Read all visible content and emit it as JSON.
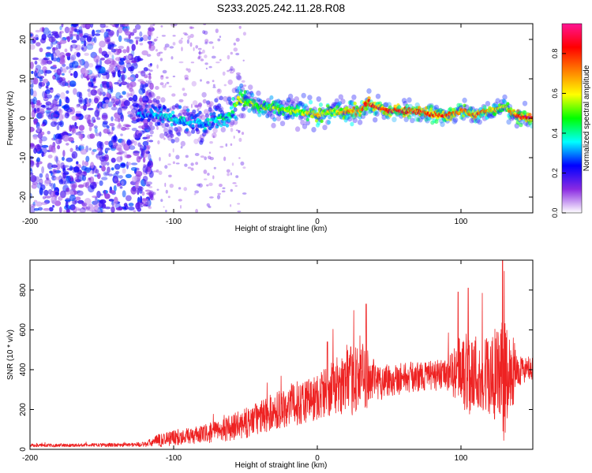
{
  "title": "S233.2025.242.11.28.R08",
  "chart_data": [
    {
      "type": "heatmap",
      "name": "spectrogram",
      "xlabel": "Height of straight line (km)",
      "ylabel": "Frequency (Hz)",
      "xlim": [
        -200,
        150
      ],
      "ylim": [
        -24,
        24
      ],
      "xticks": [
        -200,
        -100,
        0,
        100
      ],
      "yticks": [
        -20,
        -10,
        0,
        10,
        20
      ],
      "colorbar": {
        "label": "Normalized spectral amplitude",
        "range": [
          0.0,
          0.95
        ],
        "ticks": [
          0.0,
          0.2,
          0.4,
          0.6,
          0.8
        ],
        "tick_labels": [
          "0.0",
          "0.2",
          "0.4",
          "0.6",
          "0.8"
        ],
        "colormap": [
          "#ffffff",
          "#8a2be2",
          "#0000ff",
          "#00ffff",
          "#00ff00",
          "#ffff00",
          "#ff7f00",
          "#ff0000",
          "#ff1493"
        ]
      },
      "ridge": {
        "x": [
          -120,
          -110,
          -100,
          -90,
          -80,
          -70,
          -60,
          -55,
          -50,
          -40,
          -30,
          -20,
          -10,
          0,
          10,
          20,
          30,
          35,
          40,
          50,
          60,
          70,
          80,
          90,
          100,
          110,
          120,
          130,
          140,
          150
        ],
        "y": [
          1,
          0.5,
          0,
          -1,
          -1,
          -0.5,
          1,
          5,
          4,
          3,
          2.5,
          2,
          1.5,
          1,
          2,
          1.5,
          2,
          4,
          3,
          2,
          2,
          1.5,
          1,
          0.5,
          2,
          1,
          2,
          3,
          0.5,
          0
        ],
        "amplitude": [
          0.3,
          0.35,
          0.4,
          0.35,
          0.35,
          0.4,
          0.45,
          0.6,
          0.55,
          0.55,
          0.55,
          0.55,
          0.6,
          0.7,
          0.6,
          0.7,
          0.7,
          0.85,
          0.8,
          0.85,
          0.85,
          0.85,
          0.8,
          0.8,
          0.7,
          0.75,
          0.7,
          0.6,
          0.85,
          0.9
        ]
      },
      "noise_region": {
        "xlim": [
          -200,
          -115
        ],
        "ylim": [
          -24,
          24
        ],
        "amplitude": 0.15
      }
    },
    {
      "type": "line",
      "name": "snr",
      "xlabel": "Height of straight line (km)",
      "ylabel": "SNR (10 * v/v)",
      "xlim": [
        -200,
        150
      ],
      "ylim": [
        0,
        950
      ],
      "xticks": [
        -200,
        -100,
        0,
        100
      ],
      "yticks": [
        0,
        200,
        400,
        600,
        800
      ],
      "color": "#ee2222",
      "series": [
        {
          "name": "SNR",
          "x": [
            -200,
            -180,
            -160,
            -140,
            -120,
            -110,
            -100,
            -90,
            -80,
            -70,
            -60,
            -50,
            -40,
            -30,
            -20,
            -10,
            0,
            10,
            20,
            25,
            30,
            35,
            40,
            50,
            60,
            70,
            80,
            90,
            95,
            100,
            105,
            110,
            115,
            120,
            125,
            130,
            135,
            140,
            150
          ],
          "y": [
            20,
            20,
            22,
            22,
            25,
            45,
            60,
            65,
            75,
            90,
            110,
            130,
            160,
            190,
            220,
            240,
            260,
            310,
            330,
            350,
            380,
            360,
            340,
            350,
            360,
            365,
            370,
            375,
            380,
            400,
            390,
            380,
            370,
            360,
            350,
            340,
            380,
            400,
            400
          ],
          "spread": [
            8,
            8,
            8,
            10,
            12,
            35,
            40,
            40,
            45,
            55,
            65,
            75,
            85,
            95,
            105,
            115,
            120,
            140,
            160,
            180,
            200,
            150,
            100,
            90,
            80,
            75,
            75,
            80,
            120,
            200,
            220,
            210,
            200,
            230,
            280,
            300,
            200,
            80,
            60
          ],
          "peaks": [
            {
              "x": 7,
              "y": 540
            },
            {
              "x": 34,
              "y": 730
            },
            {
              "x": 98,
              "y": 790
            },
            {
              "x": 105,
              "y": 810
            },
            {
              "x": 129,
              "y": 950
            }
          ]
        }
      ]
    }
  ]
}
